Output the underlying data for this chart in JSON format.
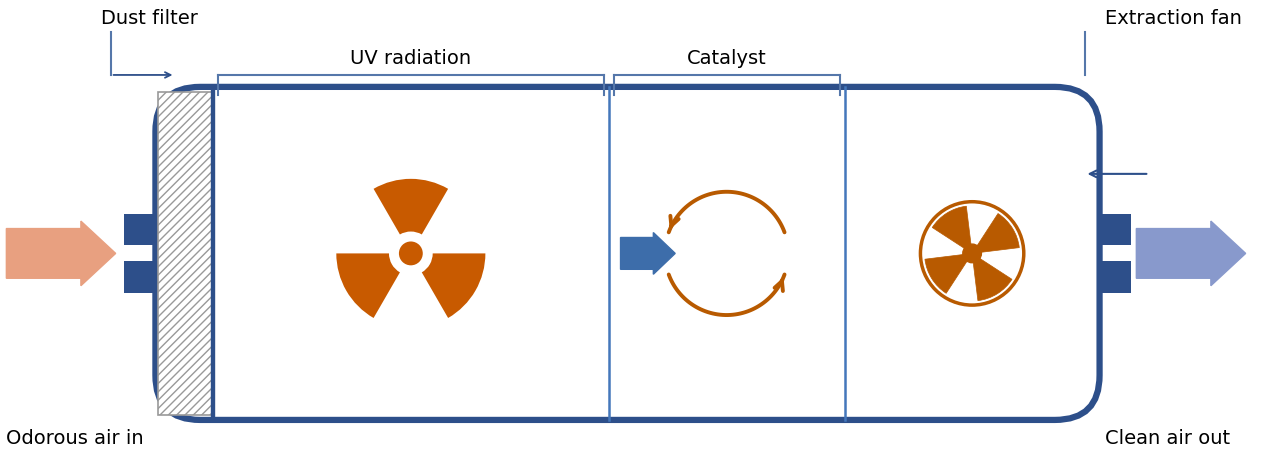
{
  "bg_color": "#ffffff",
  "dark_blue": "#2d4f8a",
  "uv_color": "#c85a00",
  "cat_color": "#b85a00",
  "arrow_in_color": "#e8a080",
  "arrow_out_color": "#8899cc",
  "arrow_mid_color": "#3d6daa",
  "label_color": "#000000",
  "bracket_color": "#5577aa",
  "fig_w": 12.8,
  "fig_h": 4.77,
  "labels": {
    "dust_filter": "Dust filter",
    "uv_radiation": "UV radiation",
    "catalyst": "Catalyst",
    "extraction_fan": "Extraction fan",
    "odorous_air_in": "Odorous air in",
    "clean_air_out": "Clean air out"
  }
}
